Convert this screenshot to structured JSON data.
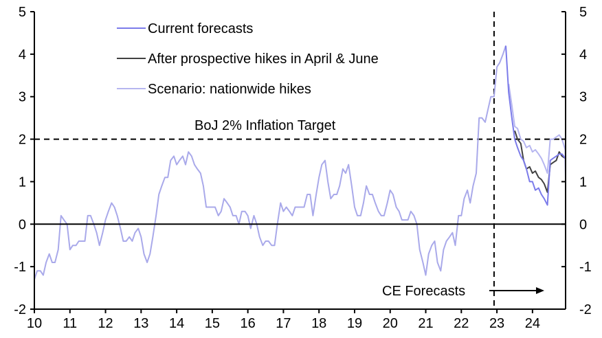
{
  "chart_data": {
    "type": "line",
    "title": "",
    "xlabel": "",
    "ylabel": "",
    "xlim": [
      2010,
      2024.93
    ],
    "ylim": [
      -2,
      5
    ],
    "y_ticks": [
      -2,
      -1,
      0,
      1,
      2,
      3,
      4,
      5
    ],
    "y_tick_labels": [
      "-2",
      "-1",
      "0",
      "1",
      "2",
      "3",
      "4",
      "5"
    ],
    "x_ticks": [
      2010,
      2011,
      2012,
      2013,
      2014,
      2015,
      2016,
      2017,
      2018,
      2019,
      2020,
      2021,
      2022,
      2023,
      2024
    ],
    "x_tick_labels": [
      "10",
      "11",
      "12",
      "13",
      "14",
      "15",
      "16",
      "17",
      "18",
      "19",
      "20",
      "21",
      "22",
      "23",
      "24"
    ],
    "grid": false,
    "dual_y_axis": true,
    "legend_position": "top-left",
    "reference_lines": [
      {
        "type": "horizontal",
        "y": 2,
        "style": "dashed",
        "label": "BoJ 2% Inflation Target"
      },
      {
        "type": "vertical",
        "x": 2022.92,
        "style": "dashed"
      }
    ],
    "annotations": [
      {
        "text": "CE Forecasts",
        "arrow": "right",
        "x": 2023.0,
        "y": -1.55
      }
    ],
    "history": {
      "name": "Actual",
      "color": "#a9a9ea",
      "points": [
        [
          2010.0,
          -1.3
        ],
        [
          2010.08,
          -1.1
        ],
        [
          2010.17,
          -1.1
        ],
        [
          2010.25,
          -1.2
        ],
        [
          2010.33,
          -0.9
        ],
        [
          2010.42,
          -0.7
        ],
        [
          2010.5,
          -0.9
        ],
        [
          2010.58,
          -0.9
        ],
        [
          2010.67,
          -0.6
        ],
        [
          2010.75,
          0.2
        ],
        [
          2010.83,
          0.1
        ],
        [
          2010.92,
          0.0
        ],
        [
          2011.0,
          -0.6
        ],
        [
          2011.08,
          -0.5
        ],
        [
          2011.17,
          -0.5
        ],
        [
          2011.25,
          -0.4
        ],
        [
          2011.33,
          -0.4
        ],
        [
          2011.42,
          -0.4
        ],
        [
          2011.5,
          0.2
        ],
        [
          2011.58,
          0.2
        ],
        [
          2011.67,
          0.0
        ],
        [
          2011.75,
          -0.2
        ],
        [
          2011.83,
          -0.5
        ],
        [
          2011.92,
          -0.2
        ],
        [
          2012.0,
          0.1
        ],
        [
          2012.08,
          0.3
        ],
        [
          2012.17,
          0.5
        ],
        [
          2012.25,
          0.4
        ],
        [
          2012.33,
          0.2
        ],
        [
          2012.42,
          -0.1
        ],
        [
          2012.5,
          -0.4
        ],
        [
          2012.58,
          -0.4
        ],
        [
          2012.67,
          -0.3
        ],
        [
          2012.75,
          -0.4
        ],
        [
          2012.83,
          -0.2
        ],
        [
          2012.92,
          -0.1
        ],
        [
          2013.0,
          -0.3
        ],
        [
          2013.08,
          -0.7
        ],
        [
          2013.17,
          -0.9
        ],
        [
          2013.25,
          -0.7
        ],
        [
          2013.33,
          -0.3
        ],
        [
          2013.42,
          0.2
        ],
        [
          2013.5,
          0.7
        ],
        [
          2013.58,
          0.9
        ],
        [
          2013.67,
          1.1
        ],
        [
          2013.75,
          1.1
        ],
        [
          2013.83,
          1.5
        ],
        [
          2013.92,
          1.6
        ],
        [
          2014.0,
          1.4
        ],
        [
          2014.08,
          1.5
        ],
        [
          2014.17,
          1.6
        ],
        [
          2014.25,
          1.4
        ],
        [
          2014.33,
          1.7
        ],
        [
          2014.42,
          1.6
        ],
        [
          2014.5,
          1.4
        ],
        [
          2014.58,
          1.3
        ],
        [
          2014.67,
          1.2
        ],
        [
          2014.75,
          0.9
        ],
        [
          2014.83,
          0.4
        ],
        [
          2014.92,
          0.4
        ],
        [
          2015.0,
          0.4
        ],
        [
          2015.08,
          0.4
        ],
        [
          2015.17,
          0.2
        ],
        [
          2015.25,
          0.3
        ],
        [
          2015.33,
          0.6
        ],
        [
          2015.42,
          0.5
        ],
        [
          2015.5,
          0.4
        ],
        [
          2015.58,
          0.2
        ],
        [
          2015.67,
          0.2
        ],
        [
          2015.75,
          0.0
        ],
        [
          2015.83,
          0.3
        ],
        [
          2015.92,
          0.3
        ],
        [
          2016.0,
          0.2
        ],
        [
          2016.08,
          -0.1
        ],
        [
          2016.17,
          0.2
        ],
        [
          2016.25,
          0.0
        ],
        [
          2016.33,
          -0.3
        ],
        [
          2016.42,
          -0.5
        ],
        [
          2016.5,
          -0.4
        ],
        [
          2016.58,
          -0.4
        ],
        [
          2016.67,
          -0.5
        ],
        [
          2016.75,
          -0.5
        ],
        [
          2016.83,
          0.0
        ],
        [
          2016.92,
          0.5
        ],
        [
          2017.0,
          0.3
        ],
        [
          2017.08,
          0.4
        ],
        [
          2017.17,
          0.3
        ],
        [
          2017.25,
          0.2
        ],
        [
          2017.33,
          0.4
        ],
        [
          2017.42,
          0.4
        ],
        [
          2017.5,
          0.4
        ],
        [
          2017.58,
          0.4
        ],
        [
          2017.67,
          0.7
        ],
        [
          2017.75,
          0.7
        ],
        [
          2017.83,
          0.2
        ],
        [
          2017.92,
          0.7
        ],
        [
          2018.0,
          1.1
        ],
        [
          2018.08,
          1.4
        ],
        [
          2018.17,
          1.5
        ],
        [
          2018.25,
          1.0
        ],
        [
          2018.33,
          0.6
        ],
        [
          2018.42,
          0.7
        ],
        [
          2018.5,
          0.7
        ],
        [
          2018.58,
          0.9
        ],
        [
          2018.67,
          1.3
        ],
        [
          2018.75,
          1.2
        ],
        [
          2018.83,
          1.4
        ],
        [
          2018.92,
          0.9
        ],
        [
          2019.0,
          0.4
        ],
        [
          2019.08,
          0.2
        ],
        [
          2019.17,
          0.2
        ],
        [
          2019.25,
          0.5
        ],
        [
          2019.33,
          0.9
        ],
        [
          2019.42,
          0.7
        ],
        [
          2019.5,
          0.7
        ],
        [
          2019.58,
          0.5
        ],
        [
          2019.67,
          0.3
        ],
        [
          2019.75,
          0.2
        ],
        [
          2019.83,
          0.2
        ],
        [
          2019.92,
          0.5
        ],
        [
          2020.0,
          0.8
        ],
        [
          2020.08,
          0.7
        ],
        [
          2020.17,
          0.4
        ],
        [
          2020.25,
          0.3
        ],
        [
          2020.33,
          0.1
        ],
        [
          2020.42,
          0.1
        ],
        [
          2020.5,
          0.1
        ],
        [
          2020.58,
          0.3
        ],
        [
          2020.67,
          0.2
        ],
        [
          2020.75,
          0.0
        ],
        [
          2020.83,
          -0.6
        ],
        [
          2020.92,
          -0.9
        ],
        [
          2021.0,
          -1.2
        ],
        [
          2021.08,
          -0.7
        ],
        [
          2021.17,
          -0.5
        ],
        [
          2021.25,
          -0.4
        ],
        [
          2021.33,
          -0.9
        ],
        [
          2021.42,
          -1.1
        ],
        [
          2021.5,
          -0.6
        ],
        [
          2021.58,
          -0.4
        ],
        [
          2021.67,
          -0.3
        ],
        [
          2021.75,
          -0.2
        ],
        [
          2021.83,
          -0.5
        ],
        [
          2021.92,
          0.2
        ],
        [
          2022.0,
          0.2
        ],
        [
          2022.08,
          0.6
        ],
        [
          2022.17,
          0.8
        ],
        [
          2022.25,
          0.5
        ],
        [
          2022.33,
          0.9
        ],
        [
          2022.42,
          1.2
        ],
        [
          2022.5,
          2.5
        ],
        [
          2022.58,
          2.5
        ],
        [
          2022.67,
          2.4
        ],
        [
          2022.75,
          2.7
        ],
        [
          2022.83,
          3.0
        ],
        [
          2022.92,
          3.0
        ],
        [
          2023.0,
          3.7
        ],
        [
          2023.08,
          3.8
        ],
        [
          2023.17,
          4.0
        ],
        [
          2023.25,
          4.2
        ]
      ]
    },
    "series": [
      {
        "name": "Current forecasts",
        "color": "#7b7bea",
        "points": [
          [
            2023.25,
            4.2
          ],
          [
            2023.33,
            3.1
          ],
          [
            2023.42,
            2.5
          ],
          [
            2023.5,
            2.0
          ],
          [
            2023.58,
            1.8
          ],
          [
            2023.67,
            1.6
          ],
          [
            2023.75,
            1.5
          ],
          [
            2023.83,
            1.3
          ],
          [
            2023.92,
            1.0
          ],
          [
            2024.0,
            1.0
          ],
          [
            2024.08,
            0.8
          ],
          [
            2024.17,
            0.85
          ],
          [
            2024.25,
            0.7
          ],
          [
            2024.33,
            0.6
          ],
          [
            2024.42,
            0.45
          ],
          [
            2024.5,
            1.5
          ],
          [
            2024.58,
            1.55
          ],
          [
            2024.67,
            1.6
          ],
          [
            2024.75,
            1.65
          ],
          [
            2024.83,
            1.65
          ],
          [
            2024.92,
            1.55
          ]
        ]
      },
      {
        "name": "After prospective hikes in April & June",
        "color": "#404040",
        "points": [
          [
            2023.5,
            2.2
          ],
          [
            2023.58,
            2.0
          ],
          [
            2023.67,
            1.9
          ],
          [
            2023.75,
            1.5
          ],
          [
            2023.83,
            1.3
          ],
          [
            2023.92,
            1.35
          ],
          [
            2024.0,
            1.2
          ],
          [
            2024.08,
            1.25
          ],
          [
            2024.17,
            1.1
          ],
          [
            2024.25,
            1.05
          ],
          [
            2024.33,
            0.95
          ],
          [
            2024.42,
            0.75
          ],
          [
            2024.5,
            1.4
          ],
          [
            2024.58,
            1.45
          ],
          [
            2024.67,
            1.5
          ],
          [
            2024.75,
            1.7
          ],
          [
            2024.83,
            1.6
          ],
          [
            2024.92,
            1.55
          ]
        ]
      },
      {
        "name": "Scenario: nationwide hikes",
        "color": "#b6b6f0",
        "points": [
          [
            2023.33,
            3.3
          ],
          [
            2023.42,
            2.8
          ],
          [
            2023.5,
            2.3
          ],
          [
            2023.58,
            2.25
          ],
          [
            2023.67,
            2.0
          ],
          [
            2023.75,
            1.95
          ],
          [
            2023.83,
            1.8
          ],
          [
            2023.92,
            1.85
          ],
          [
            2024.0,
            1.7
          ],
          [
            2024.08,
            1.75
          ],
          [
            2024.17,
            1.65
          ],
          [
            2024.25,
            1.55
          ],
          [
            2024.33,
            1.4
          ],
          [
            2024.42,
            1.2
          ],
          [
            2024.5,
            2.0
          ],
          [
            2024.58,
            2.0
          ],
          [
            2024.67,
            2.05
          ],
          [
            2024.75,
            2.1
          ],
          [
            2024.83,
            2.0
          ],
          [
            2024.92,
            1.75
          ],
          [
            2025.0,
            1.2
          ],
          [
            2025.08,
            0.6
          ],
          [
            2025.17,
            0.65
          ]
        ]
      }
    ],
    "tail": {
      "name": "Merged tail",
      "color": "#a9a9ea",
      "points": [
        [
          2024.92,
          1.55
        ],
        [
          2025.0,
          1.1
        ],
        [
          2025.08,
          0.65
        ],
        [
          2025.17,
          0.65
        ]
      ]
    }
  },
  "legend": {
    "items": [
      {
        "label": "Current forecasts",
        "color": "#7b7bea"
      },
      {
        "label": "After prospective hikes in April & June",
        "color": "#404040"
      },
      {
        "label": "Scenario: nationwide hikes",
        "color": "#b6b6f0"
      }
    ]
  },
  "labels": {
    "target": "BoJ 2% Inflation Target",
    "forecasts": "CE Forecasts"
  }
}
